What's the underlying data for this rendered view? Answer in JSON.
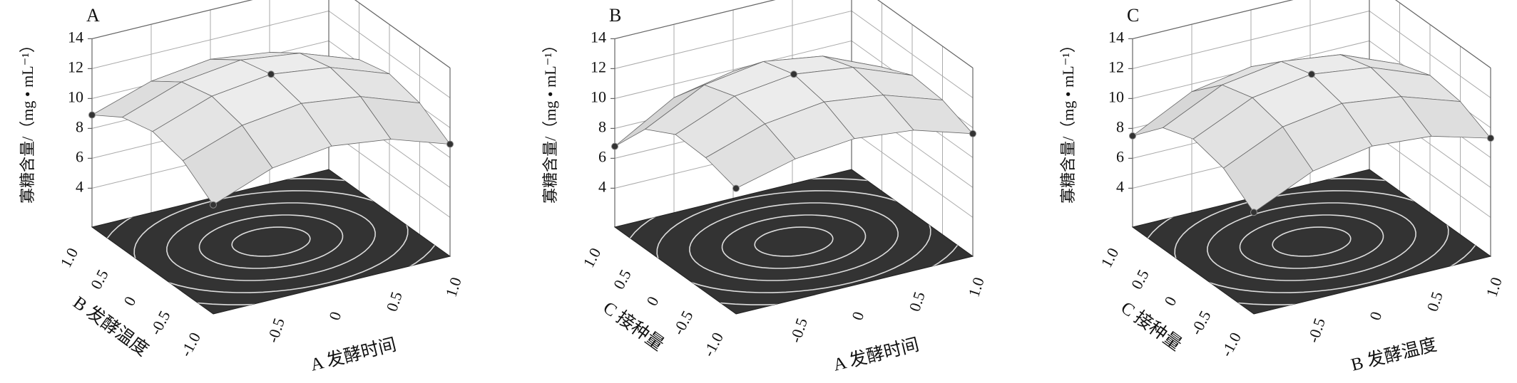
{
  "chart_data": [
    {
      "type": "surface",
      "title": "A",
      "xlabel": "A 发酵时间",
      "ylabel": "B 发酵温度",
      "zlabel": "寡糖含量/（mg • mL⁻¹）",
      "x": [
        -1,
        -0.5,
        0,
        0.5,
        1
      ],
      "y": [
        -1,
        -0.5,
        0,
        0.5,
        1
      ],
      "z": [
        [
          8.7,
          10.2,
          10.7,
          10.2,
          8.9
        ],
        [
          10.2,
          11.6,
          12.1,
          11.6,
          10.2
        ],
        [
          10.7,
          12.1,
          12.6,
          12.1,
          10.7
        ],
        [
          10.2,
          11.6,
          12.1,
          11.6,
          10.2
        ],
        [
          8.9,
          10.2,
          10.7,
          10.2,
          8.8
        ]
      ],
      "xlim": [
        -1,
        1
      ],
      "ylim": [
        -1,
        1
      ],
      "zlim": [
        1.4,
        14
      ],
      "xticks": [
        -0.5,
        0,
        0.5,
        {
          "value": 1,
          "label": "1.0"
        }
      ],
      "yticks": [
        {
          "value": -1,
          "label": "-1.0"
        },
        -0.5,
        0,
        0.5,
        {
          "value": 1,
          "label": "1.0"
        }
      ],
      "zticks": [
        4,
        6,
        8,
        10,
        12,
        14
      ],
      "grid": true
    },
    {
      "type": "surface",
      "title": "B",
      "xlabel": "A 发酵时间",
      "ylabel": "C 接种量",
      "zlabel": "寡糖含量/（mg • mL⁻¹）",
      "x": [
        -1,
        -0.5,
        0,
        0.5,
        1
      ],
      "y": [
        -1,
        -0.5,
        0,
        0.5,
        1
      ],
      "z": [
        [
          9.8,
          10.8,
          11.2,
          10.8,
          9.6
        ],
        [
          10.4,
          11.7,
          12.2,
          11.7,
          10.4
        ],
        [
          10.5,
          12.1,
          12.6,
          12.1,
          10.6
        ],
        [
          9.4,
          11.4,
          12.0,
          11.4,
          9.7
        ],
        [
          6.8,
          9.1,
          9.9,
          9.3,
          7.5
        ]
      ],
      "xlim": [
        -1,
        1
      ],
      "ylim": [
        -1,
        1
      ],
      "zlim": [
        1.4,
        14
      ],
      "xticks": [
        -0.5,
        0,
        0.5,
        {
          "value": 1,
          "label": "1.0"
        }
      ],
      "yticks": [
        {
          "value": -1,
          "label": "-1.0"
        },
        -0.5,
        0,
        0.5,
        {
          "value": 1,
          "label": "1.0"
        }
      ],
      "zticks": [
        4,
        6,
        8,
        10,
        12,
        14
      ],
      "grid": true
    },
    {
      "type": "surface",
      "title": "C",
      "xlabel": "B 发酵温度",
      "ylabel": "C 接种量",
      "zlabel": "寡糖含量/（mg • mL⁻¹）",
      "x": [
        -1,
        -0.5,
        0,
        0.5,
        1
      ],
      "y": [
        -1,
        -0.5,
        0,
        0.5,
        1
      ],
      "z": [
        [
          8.2,
          10.0,
          10.7,
          10.4,
          9.3
        ],
        [
          9.7,
          11.5,
          12.1,
          11.6,
          10.3
        ],
        [
          10.2,
          12.0,
          12.6,
          12.1,
          10.6
        ],
        [
          9.5,
          11.4,
          12.0,
          11.5,
          9.9
        ],
        [
          7.5,
          9.5,
          10.2,
          9.6,
          8.0
        ]
      ],
      "xlim": [
        -1,
        1
      ],
      "ylim": [
        -1,
        1
      ],
      "zlim": [
        1.4,
        14
      ],
      "xticks": [
        -0.5,
        0,
        0.5,
        {
          "value": 1,
          "label": "1.0"
        }
      ],
      "yticks": [
        {
          "value": -1,
          "label": "-1.0"
        },
        -0.5,
        0,
        0.5,
        {
          "value": 1,
          "label": "1.0"
        }
      ],
      "zticks": [
        4,
        6,
        8,
        10,
        12,
        14
      ],
      "grid": true
    }
  ]
}
